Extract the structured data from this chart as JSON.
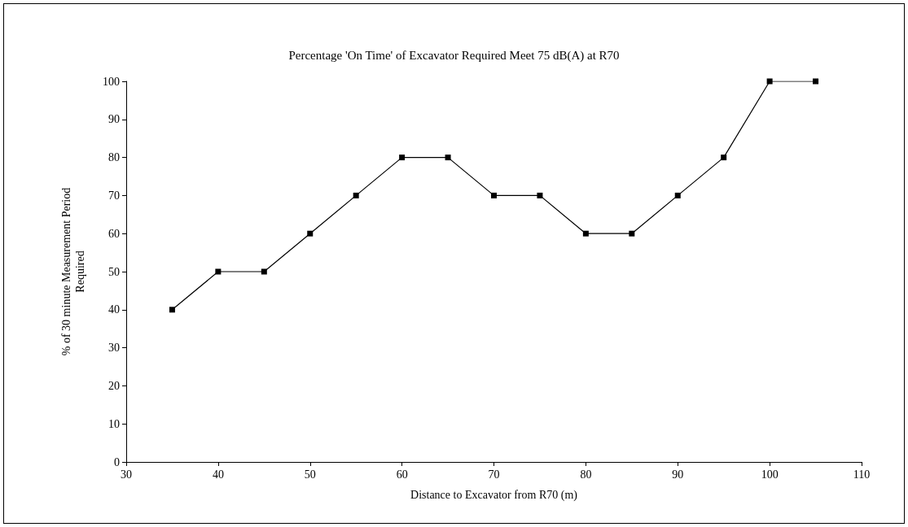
{
  "chart_data": {
    "type": "line",
    "title": "Percentage 'On Time' of Excavator Required Meet 75 dB(A) at R70",
    "xlabel": "Distance to Excavator from R70 (m)",
    "ylabel": "% of 30 minute Measurement Period\nRequired",
    "x": [
      35,
      40,
      45,
      50,
      55,
      60,
      65,
      70,
      75,
      80,
      85,
      90,
      95,
      100,
      105
    ],
    "series": [
      {
        "color": "#000000",
        "values": [
          40,
          50,
          50,
          60,
          70,
          80,
          80,
          70,
          70,
          60,
          60,
          70,
          80,
          100,
          100
        ]
      }
    ],
    "xlim": [
      30,
      110
    ],
    "xticks": [
      30,
      40,
      50,
      60,
      70,
      80,
      90,
      100,
      110
    ],
    "ylim": [
      0,
      100
    ],
    "yticks": [
      0,
      10,
      20,
      30,
      40,
      50,
      60,
      70,
      80,
      90,
      100
    ],
    "grid": false,
    "marker": "square",
    "line_style": "solid"
  }
}
